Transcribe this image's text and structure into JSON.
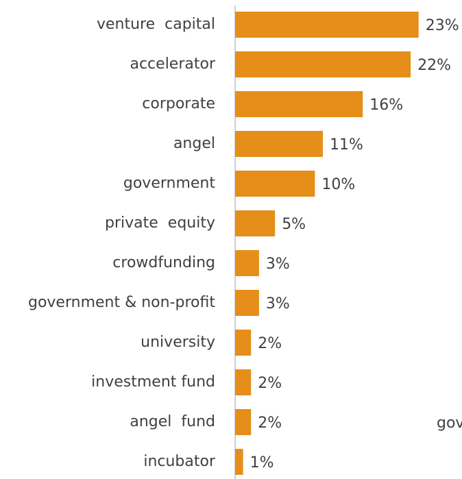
{
  "chart_data": {
    "type": "bar",
    "orientation": "horizontal",
    "categories": [
      "venture  capital",
      "accelerator",
      "corporate",
      "angel",
      "government",
      "private  equity",
      "crowdfunding",
      "government & non-profit",
      "university",
      "investment fund",
      "angel  fund",
      "incubator"
    ],
    "values": [
      23,
      22,
      16,
      11,
      10,
      5,
      3,
      3,
      2,
      2,
      2,
      1
    ],
    "value_labels": [
      "23%",
      "22%",
      "16%",
      "11%",
      "10%",
      "5%",
      "3%",
      "3%",
      "2%",
      "2%",
      "2%",
      "1%"
    ],
    "color": "#e58e1a",
    "xlim": [
      0,
      25
    ],
    "annotations": [
      "gov"
    ]
  }
}
